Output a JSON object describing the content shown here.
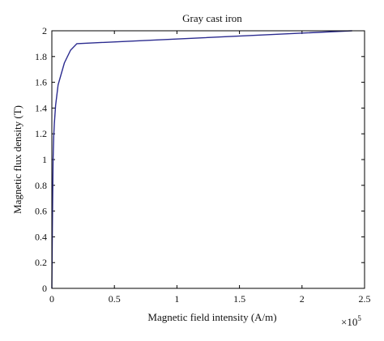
{
  "chart_data": {
    "type": "line",
    "title": "Gray cast iron",
    "xlabel": "Magnetic field intensity (A/m)",
    "ylabel": "Magnetic flux density (T)",
    "x_multiplier": "×10",
    "x_multiplier_exponent": "5",
    "xlim": [
      0,
      2.5
    ],
    "ylim": [
      0,
      2
    ],
    "xticks": [
      0,
      0.5,
      1,
      1.5,
      2,
      2.5
    ],
    "xtick_labels": [
      "0",
      "0.5",
      "1",
      "1.5",
      "2",
      "2.5"
    ],
    "yticks": [
      0,
      0.2,
      0.4,
      0.6,
      0.8,
      1,
      1.2,
      1.4,
      1.6,
      1.8,
      2
    ],
    "ytick_labels": [
      "0",
      "0.2",
      "0.4",
      "0.6",
      "0.8",
      "1",
      "1.2",
      "1.4",
      "1.6",
      "1.8",
      "2"
    ],
    "grid": false,
    "series": [
      {
        "color": "#2b2b8f",
        "x": [
          0,
          0.005,
          0.01,
          0.015,
          0.02,
          0.03,
          0.05,
          0.1,
          0.15,
          0.2,
          2.4
        ],
        "y": [
          0,
          0.55,
          1.0,
          1.18,
          1.28,
          1.42,
          1.58,
          1.75,
          1.85,
          1.9,
          2.0
        ]
      }
    ]
  }
}
